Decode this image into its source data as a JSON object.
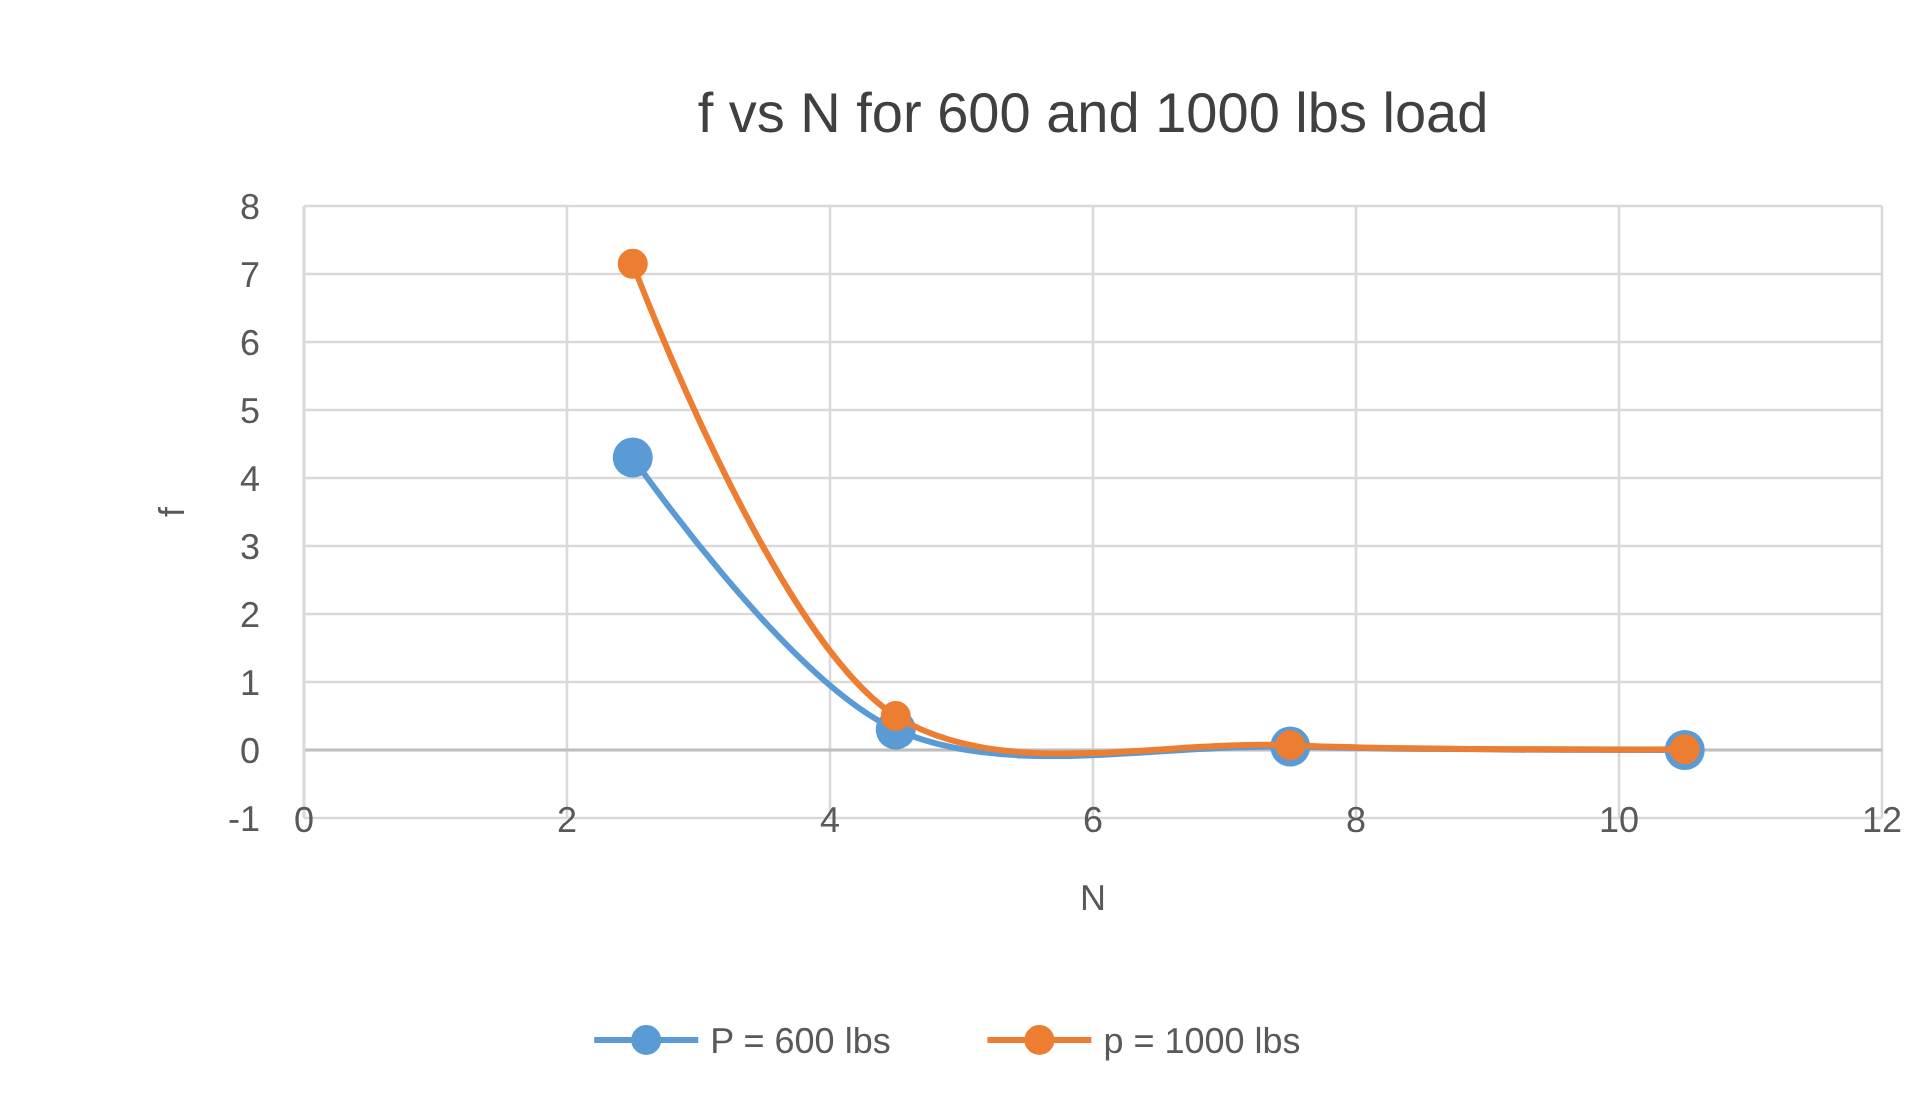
{
  "chart_data": {
    "type": "line",
    "title": "f vs N for 600 and 1000 lbs load",
    "xlabel": "N",
    "ylabel": "f",
    "x": [
      2.5,
      4.5,
      7.5,
      10.5
    ],
    "series": [
      {
        "name": "P = 600 lbs",
        "color": "#5b9bd5",
        "values": [
          4.3,
          0.3,
          0.05,
          0
        ]
      },
      {
        "name": "p = 1000 lbs",
        "color": "#ed7d31",
        "values": [
          7.15,
          0.5,
          0.07,
          0.01
        ]
      }
    ],
    "xlim": [
      0,
      12
    ],
    "xticks": [
      0,
      2,
      4,
      6,
      8,
      10,
      12
    ],
    "ylim": [
      -1,
      8
    ],
    "yticks": [
      -1,
      0,
      1,
      2,
      3,
      4,
      5,
      6,
      7,
      8
    ],
    "grid": true,
    "legend": "bottom",
    "marker": "circle",
    "line_style": "solid"
  }
}
